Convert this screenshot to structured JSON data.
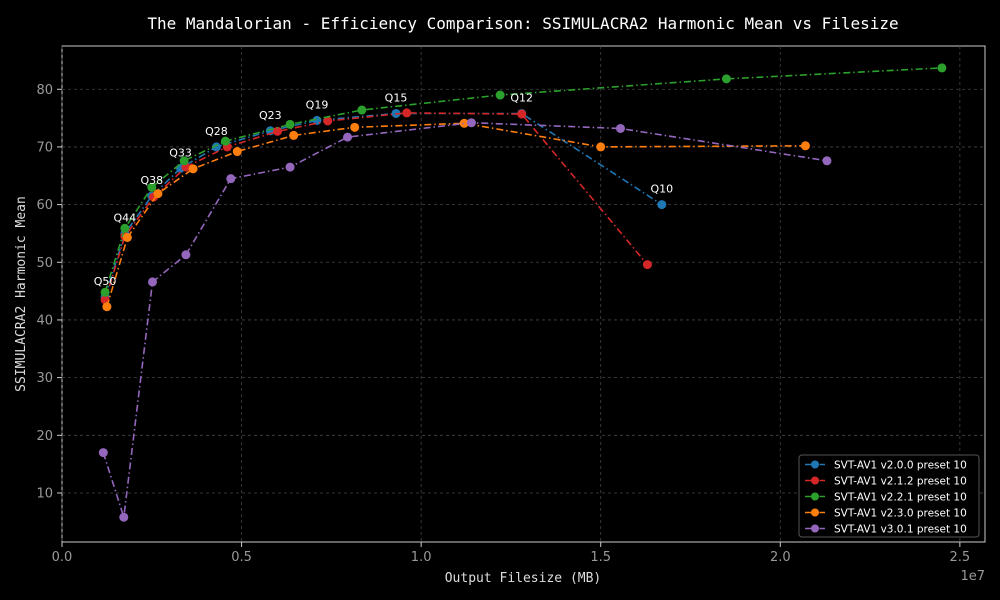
{
  "chart_data": {
    "type": "line",
    "title": "The Mandalorian - Efficiency Comparison: SSIMULACRA2 Harmonic Mean vs Filesize",
    "xlabel": "Output Filesize (MB)",
    "ylabel": "SSIMULACRA2 Harmonic Mean",
    "x_offset_label": "1e7",
    "xlim": [
      0,
      25700000
    ],
    "ylim": [
      1.5,
      87.5
    ],
    "xticks": [
      0,
      5000000,
      10000000,
      15000000,
      20000000,
      25000000
    ],
    "xtick_labels": [
      "0.0",
      "0.5",
      "1.0",
      "1.5",
      "2.0",
      "2.5"
    ],
    "yticks": [
      10,
      20,
      30,
      40,
      50,
      60,
      70,
      80
    ],
    "ytick_labels": [
      "10",
      "20",
      "30",
      "40",
      "50",
      "60",
      "70",
      "80"
    ],
    "grid": true,
    "legend_position": "bottom-right",
    "series": [
      {
        "name": "SVT-AV1 v2.0.0 preset 10",
        "color": "#1f77b4",
        "points": [
          [
            1200000,
            44.0
          ],
          [
            1750000,
            55.0
          ],
          [
            2500000,
            61.5
          ],
          [
            3300000,
            66.3
          ],
          [
            4300000,
            70.0
          ],
          [
            5800000,
            72.8
          ],
          [
            7100000,
            74.6
          ],
          [
            9300000,
            75.8
          ],
          [
            12800000,
            75.8
          ],
          [
            16700000,
            60.0
          ]
        ]
      },
      {
        "name": "SVT-AV1 v2.1.2 preset 10",
        "color": "#d62728",
        "points": [
          [
            1200000,
            43.5
          ],
          [
            1750000,
            54.5
          ],
          [
            2550000,
            61.3
          ],
          [
            3450000,
            66.5
          ],
          [
            4600000,
            70.0
          ],
          [
            6000000,
            72.7
          ],
          [
            7400000,
            74.5
          ],
          [
            9600000,
            75.9
          ],
          [
            12800000,
            75.7
          ],
          [
            16300000,
            49.6
          ]
        ]
      },
      {
        "name": "SVT-AV1 v2.2.1 preset 10",
        "color": "#2ca02c",
        "points": [
          [
            1200000,
            44.8
          ],
          [
            1750000,
            55.9
          ],
          [
            2500000,
            63.0
          ],
          [
            3400000,
            67.6
          ],
          [
            4550000,
            71.0
          ],
          [
            6350000,
            73.9
          ],
          [
            8350000,
            76.4
          ],
          [
            12200000,
            79.0
          ],
          [
            18500000,
            81.8
          ],
          [
            24500000,
            83.7
          ]
        ]
      },
      {
        "name": "SVT-AV1 v2.3.0 preset 10",
        "color": "#ff7f0e",
        "points": [
          [
            1250000,
            42.3
          ],
          [
            1820000,
            54.3
          ],
          [
            2670000,
            61.9
          ],
          [
            3650000,
            66.2
          ],
          [
            4880000,
            69.2
          ],
          [
            6450000,
            72.0
          ],
          [
            8150000,
            73.4
          ],
          [
            11200000,
            74.1
          ],
          [
            15000000,
            70.0
          ],
          [
            20700000,
            70.2
          ]
        ]
      },
      {
        "name": "SVT-AV1 v3.0.1 preset 10",
        "color": "#9467bd",
        "points": [
          [
            1150000,
            17.0
          ],
          [
            1720000,
            5.8
          ],
          [
            2520000,
            46.6
          ],
          [
            3450000,
            51.3
          ],
          [
            4700000,
            64.5
          ],
          [
            6350000,
            66.5
          ],
          [
            7950000,
            71.7
          ],
          [
            11400000,
            74.2
          ],
          [
            15550000,
            73.2
          ],
          [
            21300000,
            67.6
          ]
        ]
      }
    ],
    "annotations": [
      {
        "text": "Q50",
        "x": 1200000,
        "y": 44.0
      },
      {
        "text": "Q44",
        "x": 1750000,
        "y": 55.0
      },
      {
        "text": "Q38",
        "x": 2500000,
        "y": 61.5
      },
      {
        "text": "Q33",
        "x": 3300000,
        "y": 66.3
      },
      {
        "text": "Q28",
        "x": 4300000,
        "y": 70.0
      },
      {
        "text": "Q23",
        "x": 5800000,
        "y": 72.8
      },
      {
        "text": "Q19",
        "x": 7100000,
        "y": 74.6
      },
      {
        "text": "Q15",
        "x": 9300000,
        "y": 75.8
      },
      {
        "text": "Q12",
        "x": 12800000,
        "y": 75.8
      },
      {
        "text": "Q10",
        "x": 16700000,
        "y": 60.0
      }
    ]
  }
}
